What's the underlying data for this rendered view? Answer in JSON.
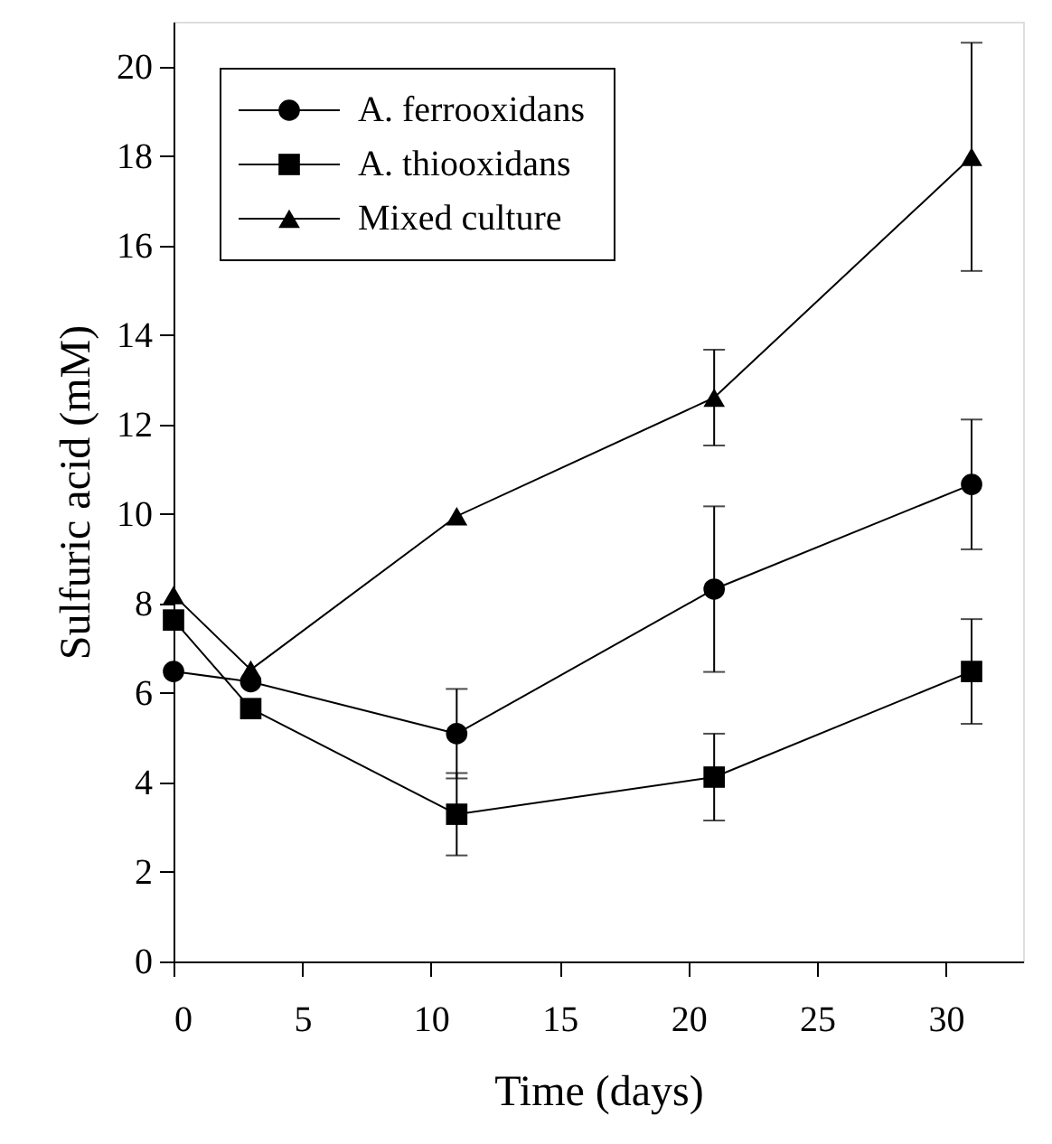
{
  "chart_data": {
    "type": "line",
    "xlabel": "Time (days)",
    "ylabel": "Sulfuric acid (mM)",
    "x": [
      0,
      3,
      11,
      21,
      31
    ],
    "xlim": [
      0,
      33
    ],
    "xticks": [
      0,
      5,
      10,
      15,
      20,
      25,
      30
    ],
    "ylim": [
      0,
      21
    ],
    "yticks": [
      0,
      2,
      4,
      6,
      8,
      10,
      12,
      14,
      16,
      18,
      20
    ],
    "grid": false,
    "legend": "top left",
    "line_style": "solid",
    "series": [
      {
        "name": "A. ferrooxidans",
        "color": "#000000",
        "marker": "circle",
        "values": [
          6.48,
          6.25,
          5.09,
          8.32,
          10.66
        ],
        "errors": [
          null,
          null,
          1.0,
          1.85,
          1.45
        ]
      },
      {
        "name": "A. thiooxidans",
        "color": "#000000",
        "marker": "square",
        "values": [
          7.63,
          5.65,
          3.29,
          4.12,
          6.48
        ],
        "errors": [
          null,
          null,
          0.92,
          0.97,
          1.17
        ]
      },
      {
        "name": "Mixed culture",
        "color": "#000000",
        "marker": "triangle",
        "values": [
          8.19,
          6.52,
          9.95,
          12.6,
          17.98
        ],
        "errors": [
          null,
          null,
          null,
          1.07,
          2.55
        ]
      }
    ]
  }
}
